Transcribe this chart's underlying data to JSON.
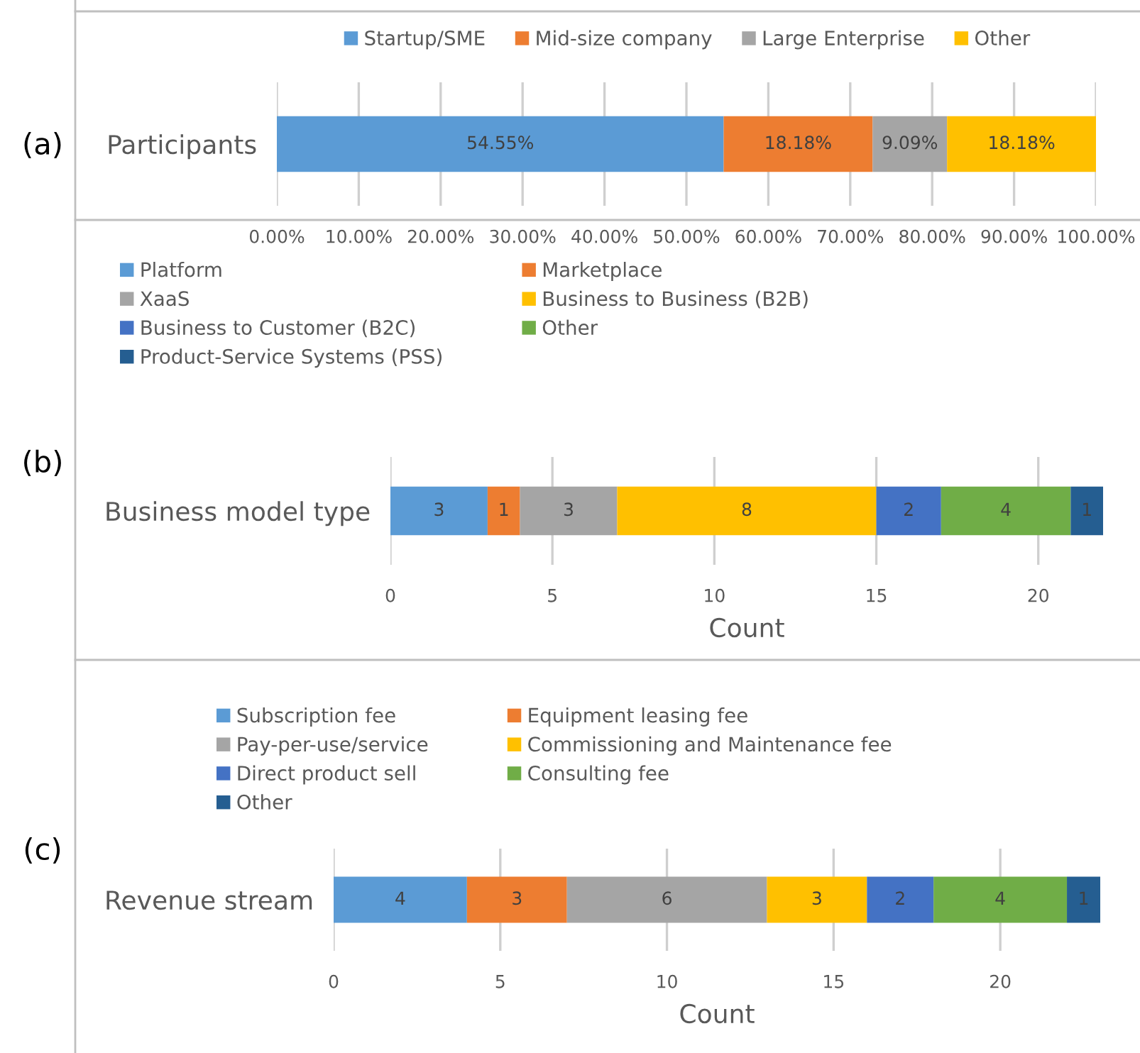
{
  "chart_data": [
    {
      "type": "bar",
      "orientation": "horizontal",
      "stacked": true,
      "categories": [
        "Participants"
      ],
      "legend": "top",
      "grid": "x",
      "annotations": [
        "(a)"
      ],
      "series": [
        {
          "name": "Startup/SME",
          "color": "#5b9bd5",
          "values": [
            54.55
          ],
          "value_labels": [
            "54.55%"
          ]
        },
        {
          "name": "Mid-size company",
          "color": "#ed7d31",
          "values": [
            18.18
          ],
          "value_labels": [
            "18.18%"
          ]
        },
        {
          "name": "Large Enterprise",
          "color": "#a5a5a5",
          "values": [
            9.09
          ],
          "value_labels": [
            "9.09%"
          ]
        },
        {
          "name": "Other",
          "color": "#ffc000",
          "values": [
            18.18
          ],
          "value_labels": [
            "18.18%"
          ]
        }
      ],
      "xlim": [
        0,
        100
      ],
      "xticks": [
        {
          "value": 0,
          "label": "0.00%"
        },
        {
          "value": 10,
          "label": "10.00%"
        },
        {
          "value": 20,
          "label": "20.00%"
        },
        {
          "value": 30,
          "label": "30.00%"
        },
        {
          "value": 40,
          "label": "40.00%"
        },
        {
          "value": 50,
          "label": "50.00%"
        },
        {
          "value": 60,
          "label": "60.00%"
        },
        {
          "value": 70,
          "label": "70.00%"
        },
        {
          "value": 80,
          "label": "80.00%"
        },
        {
          "value": 90,
          "label": "90.00%"
        },
        {
          "value": 100,
          "label": "100.00%"
        }
      ]
    },
    {
      "type": "bar",
      "orientation": "horizontal",
      "stacked": true,
      "categories": [
        "Business model type"
      ],
      "legend": "top",
      "grid": "x",
      "data_labels": true,
      "xlabel": "Count",
      "annotations": [
        "(b)"
      ],
      "series": [
        {
          "name": "Platform",
          "color": "#5b9bd5",
          "values": [
            3
          ]
        },
        {
          "name": "Marketplace",
          "color": "#ed7d31",
          "values": [
            1
          ]
        },
        {
          "name": "XaaS",
          "color": "#a5a5a5",
          "values": [
            3
          ]
        },
        {
          "name": "Business to Business (B2B)",
          "color": "#ffc000",
          "values": [
            8
          ]
        },
        {
          "name": "Business to Customer (B2C)",
          "color": "#4472c4",
          "values": [
            2
          ]
        },
        {
          "name": "Other",
          "color": "#70ad47",
          "values": [
            4
          ]
        },
        {
          "name": "Product-Service Systems (PSS)",
          "color": "#255e91",
          "values": [
            1
          ]
        }
      ],
      "xlim": [
        0,
        22
      ],
      "xticks": [
        0,
        5,
        10,
        15,
        20
      ]
    },
    {
      "type": "bar",
      "orientation": "horizontal",
      "stacked": true,
      "categories": [
        "Revenue stream"
      ],
      "legend": "top",
      "grid": "x",
      "data_labels": true,
      "xlabel": "Count",
      "annotations": [
        "(c)"
      ],
      "series": [
        {
          "name": "Subscription fee",
          "color": "#5b9bd5",
          "values": [
            4
          ]
        },
        {
          "name": "Equipment leasing fee",
          "color": "#ed7d31",
          "values": [
            3
          ]
        },
        {
          "name": "Pay-per-use/service",
          "color": "#a5a5a5",
          "values": [
            6
          ]
        },
        {
          "name": "Commissioning and Maintenance fee",
          "color": "#ffc000",
          "values": [
            3
          ]
        },
        {
          "name": "Direct product sell",
          "color": "#4472c4",
          "values": [
            2
          ]
        },
        {
          "name": "Consulting fee",
          "color": "#70ad47",
          "values": [
            4
          ]
        },
        {
          "name": "Other",
          "color": "#255e91",
          "values": [
            1
          ]
        }
      ],
      "xlim": [
        0,
        23
      ],
      "xticks": [
        0,
        5,
        10,
        15,
        20
      ]
    }
  ]
}
